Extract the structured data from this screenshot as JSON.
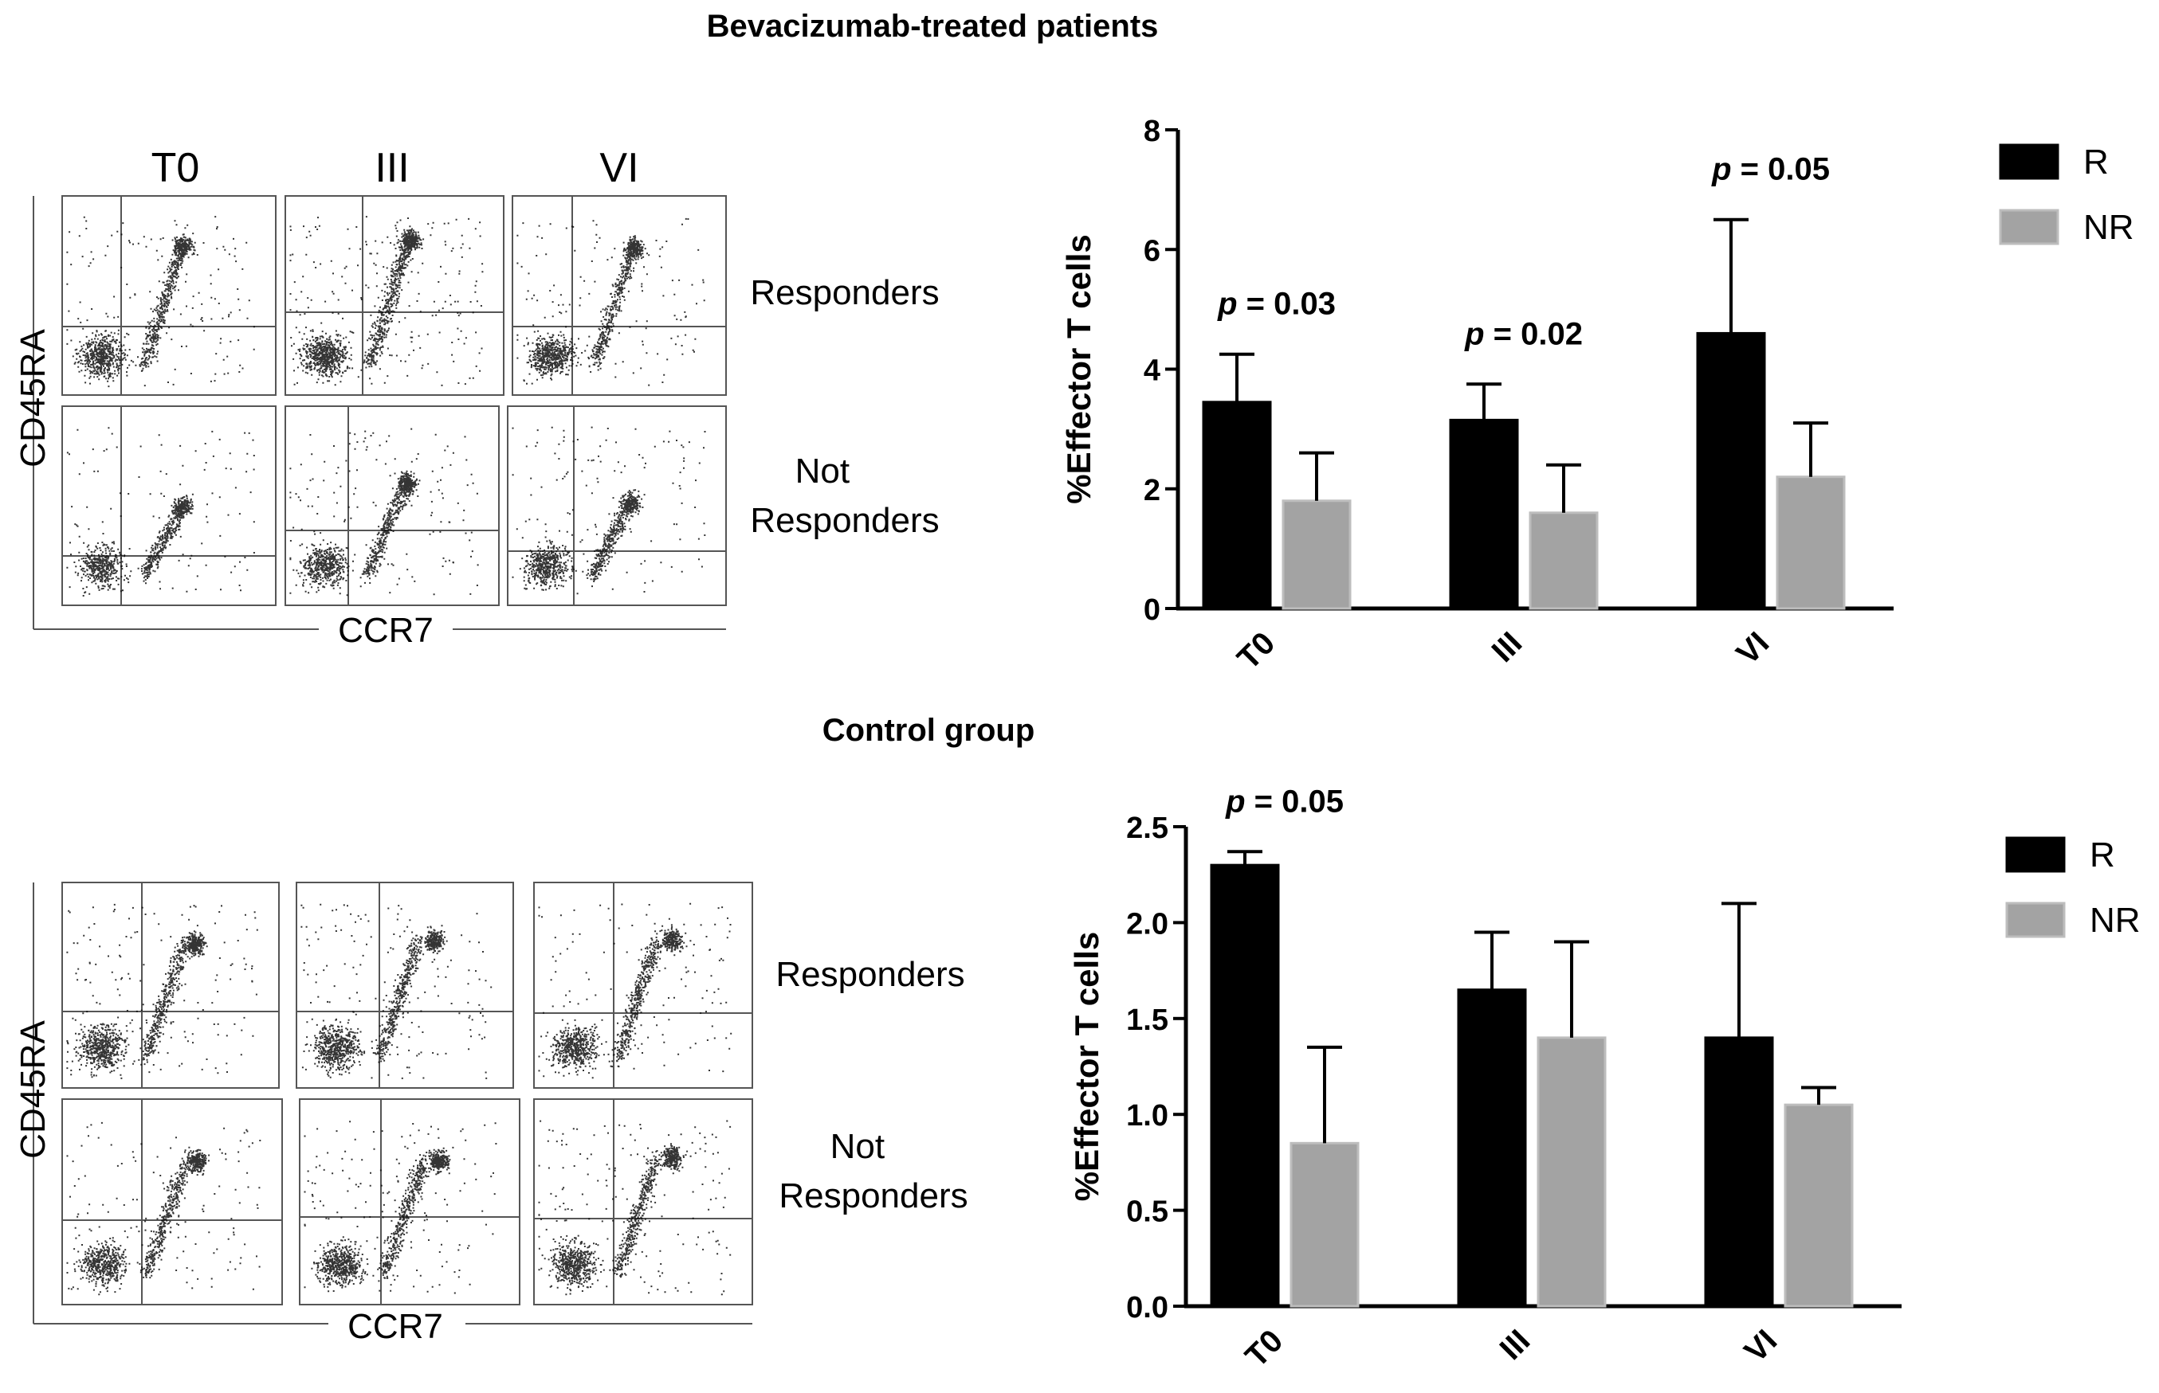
{
  "figure": {
    "top_title": "Bevacizumab-treated patients",
    "bottom_title": "Control group"
  },
  "flow_panels": [
    {
      "id": "bev",
      "columns": [
        "T0",
        "III",
        "VI"
      ],
      "rows": [
        "Responders",
        "Not Responders"
      ],
      "y_axis_label": "CD45RA",
      "x_axis_label": "CCR7",
      "show_column_headers": true
    },
    {
      "id": "ctrl",
      "columns": [
        "T0",
        "III",
        "VI"
      ],
      "rows": [
        "Responders",
        "Not Responders"
      ],
      "y_axis_label": "CD45RA",
      "x_axis_label": "CCR7",
      "show_column_headers": false
    }
  ],
  "colors": {
    "R": "#000000",
    "NR": "#a3a3a3",
    "axis": "#000000"
  },
  "chart_data": [
    {
      "type": "bar",
      "title": "Bevacizumab-treated patients",
      "categories": [
        "T0",
        "III",
        "VI"
      ],
      "series": [
        {
          "name": "R",
          "values": [
            3.45,
            3.15,
            4.6
          ],
          "errors": [
            0.8,
            0.6,
            1.9
          ]
        },
        {
          "name": "NR",
          "values": [
            1.8,
            1.6,
            2.2
          ],
          "errors": [
            0.8,
            0.8,
            0.9
          ]
        }
      ],
      "ylabel": "%Effector T cells",
      "xlabel": "",
      "ylim": [
        0,
        8
      ],
      "yticks": [
        "0",
        "2",
        "4",
        "6",
        "8"
      ],
      "annotations": [
        {
          "category": "T0",
          "prefix": "p",
          "text": " = 0.03"
        },
        {
          "category": "III",
          "prefix": "p",
          "text": " = 0.02"
        },
        {
          "category": "VI",
          "prefix": "p",
          "text": " = 0.05"
        }
      ],
      "legend": [
        "R",
        "NR"
      ],
      "legend_position": "top-right"
    },
    {
      "type": "bar",
      "title": "Control group",
      "categories": [
        "T0",
        "III",
        "VI"
      ],
      "series": [
        {
          "name": "R",
          "values": [
            2.3,
            1.65,
            1.4
          ],
          "errors": [
            0.07,
            0.3,
            0.7
          ]
        },
        {
          "name": "NR",
          "values": [
            0.85,
            1.4,
            1.05
          ],
          "errors": [
            0.5,
            0.5,
            0.09
          ]
        }
      ],
      "ylabel": "%Effector T cells",
      "xlabel": "",
      "ylim": [
        0,
        2.5
      ],
      "yticks": [
        "0.0",
        "0.5",
        "1.0",
        "1.5",
        "2.0",
        "2.5"
      ],
      "annotations": [
        {
          "category": "T0",
          "prefix": "p",
          "text": " = 0.05"
        }
      ],
      "legend": [
        "R",
        "NR"
      ],
      "legend_position": "top-right"
    }
  ]
}
